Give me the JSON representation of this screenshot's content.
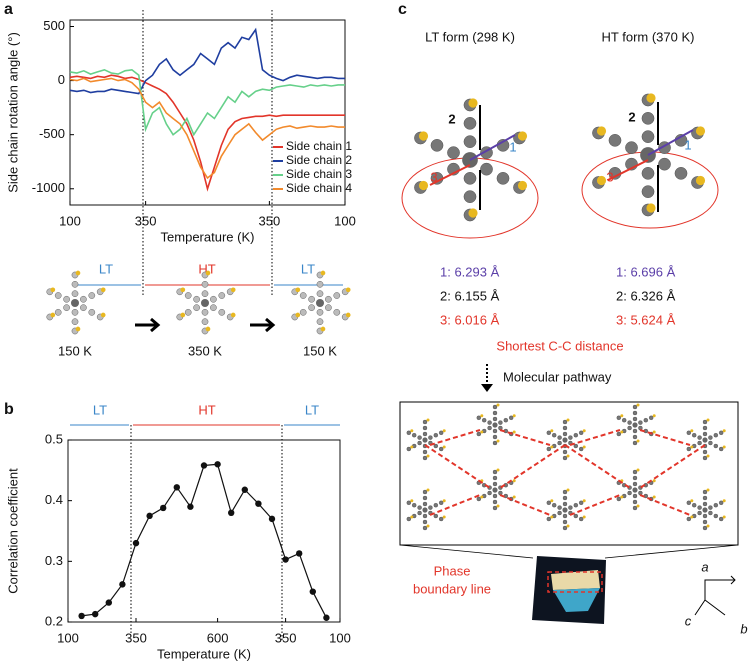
{
  "chart_data": [
    {
      "type": "line",
      "xlabel": "Temperature (K)",
      "ylabel": "Side chain rotation angle (°)",
      "categories": [
        "100",
        null,
        null,
        null,
        null,
        null,
        null,
        null,
        null,
        null,
        null,
        "350",
        null,
        null,
        null,
        null,
        null,
        null,
        null,
        null,
        null,
        null,
        null,
        null,
        null,
        null,
        null,
        null,
        null,
        "350",
        null,
        null,
        null,
        null,
        null,
        null,
        null,
        null,
        null,
        null,
        "100"
      ],
      "series": [
        {
          "name": "Side chain 1",
          "color": "#e2352a",
          "values": [
            30,
            40,
            30,
            20,
            40,
            30,
            50,
            40,
            20,
            30,
            10,
            -20,
            -50,
            -80,
            -120,
            -200,
            -300,
            -400,
            -550,
            -750,
            -1000,
            -800,
            -600,
            -450,
            -380,
            -350,
            -340,
            -330,
            -330,
            -320,
            -330,
            -320,
            -320,
            -320,
            -320,
            -320,
            -320,
            -320,
            -320,
            -320,
            -320
          ]
        },
        {
          "name": "Side chain 2",
          "color": "#1f3ea0",
          "values": [
            -90,
            -100,
            -90,
            -110,
            -100,
            -100,
            -80,
            -90,
            -100,
            -110,
            -120,
            0,
            50,
            150,
            200,
            100,
            50,
            100,
            150,
            250,
            200,
            150,
            300,
            350,
            300,
            400,
            380,
            470,
            100,
            50,
            20,
            0,
            30,
            50,
            40,
            30,
            20,
            30,
            30,
            20,
            20
          ]
        },
        {
          "name": "Side chain 3",
          "color": "#66d08a",
          "values": [
            80,
            70,
            90,
            60,
            80,
            100,
            70,
            60,
            90,
            100,
            50,
            -450,
            -300,
            -250,
            -400,
            -500,
            -450,
            -350,
            -500,
            -400,
            -300,
            -350,
            -250,
            -150,
            -200,
            -100,
            -150,
            -100,
            -80,
            -90,
            -60,
            -50,
            -40,
            -50,
            -60,
            -40,
            -50,
            -40,
            -50,
            -40,
            -40
          ]
        },
        {
          "name": "Side chain 4",
          "color": "#f28a2c",
          "values": [
            10,
            0,
            20,
            -10,
            0,
            10,
            20,
            0,
            10,
            -20,
            -80,
            -200,
            -250,
            -200,
            -300,
            -350,
            -400,
            -500,
            -650,
            -800,
            -900,
            -850,
            -700,
            -600,
            -500,
            -450,
            -400,
            -480,
            -550,
            -500,
            -450,
            -430,
            -420,
            -440,
            -430,
            -420,
            -430,
            -430,
            -420,
            -430,
            -430
          ]
        }
      ],
      "ylim": [
        -1150,
        560
      ],
      "yticks": [
        -1000,
        -500,
        0,
        500
      ],
      "legend": "lower right"
    },
    {
      "type": "line",
      "xlabel": "Temperature (K)",
      "ylabel": "Correlation coefficient",
      "categories": [
        "100",
        null,
        null,
        null,
        null,
        "350",
        null,
        null,
        null,
        null,
        null,
        "600",
        null,
        null,
        null,
        null,
        "350",
        null,
        null,
        null,
        "100"
      ],
      "values": [
        null,
        0.21,
        0.213,
        0.232,
        0.262,
        0.33,
        0.375,
        0.388,
        0.422,
        0.39,
        0.458,
        0.46,
        0.38,
        0.418,
        0.395,
        0.37,
        0.303,
        0.313,
        0.25,
        0.207,
        null
      ],
      "color": "#111111",
      "markers": true,
      "ylim": [
        0.2,
        0.5
      ],
      "yticks": [
        0.2,
        0.3,
        0.4,
        0.5
      ]
    }
  ],
  "panels": {
    "labels": [
      "a",
      "b",
      "c"
    ],
    "a_phases": [
      "LT",
      "HT",
      "LT"
    ],
    "a_snapshots": [
      "150 K",
      "350 K",
      "150 K"
    ],
    "b_phases": [
      "LT",
      "HT",
      "LT"
    ],
    "c": {
      "forms": [
        "LT form (298 K)",
        "HT form (370 K)"
      ],
      "lt_labels": [
        "2",
        "1",
        "3"
      ],
      "ht_labels": [
        "2",
        "1",
        "3"
      ],
      "lt_distances": [
        "1: 6.293 Å",
        "2: 6.155 Å",
        "3: 6.016 Å"
      ],
      "ht_distances": [
        "1: 6.696 Å",
        "2: 6.326 Å",
        "3: 5.624 Å"
      ],
      "distance_caption": "Shortest C-C distance",
      "pathway": "Molecular pathway",
      "boundary": [
        "Phase",
        "boundary line"
      ],
      "axes": [
        "a",
        "c",
        "b"
      ]
    }
  }
}
